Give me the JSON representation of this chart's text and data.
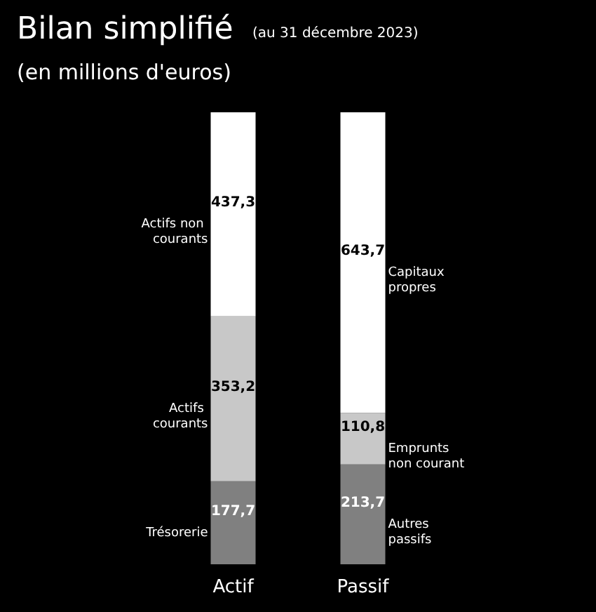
{
  "chart_data": {
    "type": "bar",
    "stacked": true,
    "title": "Bilan simplifié",
    "subtitle": "(au 31 décembre 2023)",
    "categories": [
      "Actif",
      "Passif"
    ],
    "series": [
      {
        "color": "#808080",
        "values": [
          177.7,
          213.7
        ],
        "value_labels": [
          "177,7",
          "213,7"
        ]
      },
      {
        "color": "#c8c8c8",
        "values": [
          353.2,
          110.8
        ],
        "value_labels": [
          "353,2",
          "110,8"
        ]
      },
      {
        "color": "#ffffff",
        "values": [
          437.3,
          643.7
        ],
        "value_labels": [
          "437,3",
          "643,7"
        ]
      }
    ],
    "annotations": [
      "(en millions d'euros)",
      "Trésorerie",
      "Actifs courants",
      "Actifs non courants",
      "Autres passifs",
      "Emprunts non courant",
      "Capitaux propres"
    ]
  }
}
